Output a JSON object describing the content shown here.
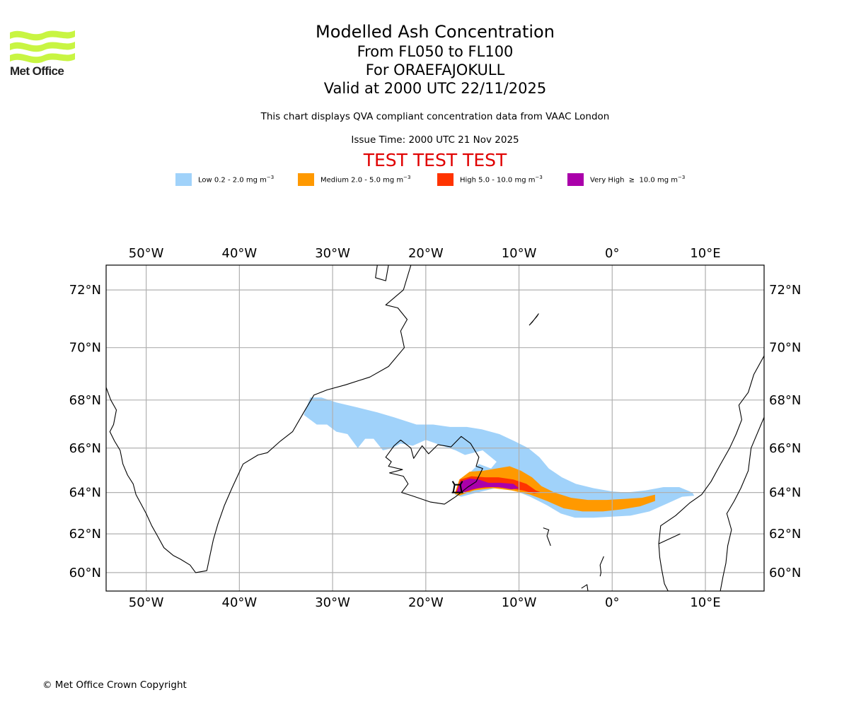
{
  "logo": {
    "text": "Met Office",
    "brand_color": "#c8f542"
  },
  "header": {
    "title": "Modelled Ash Concentration",
    "level_range": "From FL050 to FL100",
    "volcano": "For ORAEFAJOKULL",
    "valid_time": "Valid at 2000 UTC 22/11/2025",
    "source_note": "This chart displays QVA compliant concentration data from VAAC London",
    "issue_time": "Issue Time: 2000 UTC 21 Nov 2025",
    "test_banner": "TEST TEST TEST",
    "test_banner_color": "#e00000"
  },
  "legend": [
    {
      "name": "Low",
      "label": "Low 0.2 - 2.0 mg m",
      "exp": "−3",
      "color": "#a0d2fa"
    },
    {
      "name": "Medium",
      "label": "Medium 2.0 - 5.0 mg m",
      "exp": "−3",
      "color": "#ff9900"
    },
    {
      "name": "High",
      "label": "High 5.0 - 10.0 mg m",
      "exp": "−3",
      "color": "#ff3300"
    },
    {
      "name": "Very High",
      "label": "Very High  ≥  10.0 mg m",
      "exp": "−3",
      "color": "#aa00aa"
    }
  ],
  "footer": {
    "copyright": "© Met Office Crown Copyright"
  },
  "chart_data": {
    "type": "map",
    "title": "Modelled Ash Concentration",
    "extent": {
      "lon": [
        -54.3,
        16.3
      ],
      "lat": [
        59.0,
        72.8
      ]
    },
    "grid": true,
    "lon_ticks": [
      {
        "value": -50,
        "label": "50°W"
      },
      {
        "value": -40,
        "label": "40°W"
      },
      {
        "value": -30,
        "label": "30°W"
      },
      {
        "value": -20,
        "label": "20°W"
      },
      {
        "value": -10,
        "label": "10°W"
      },
      {
        "value": 0,
        "label": "0°"
      },
      {
        "value": 10,
        "label": "10°E"
      }
    ],
    "lat_ticks": [
      {
        "value": 72,
        "label": "72°N"
      },
      {
        "value": 70,
        "label": "70°N"
      },
      {
        "value": 68,
        "label": "68°N"
      },
      {
        "value": 66,
        "label": "66°N"
      },
      {
        "value": 64,
        "label": "64°N"
      },
      {
        "value": 62,
        "label": "62°N"
      },
      {
        "value": 60,
        "label": "60°N"
      }
    ],
    "volcano_location": {
      "name": "ORAEFAJOKULL",
      "lon": -16.6,
      "lat": 64.0
    },
    "ash_levels": [
      {
        "level": "Low",
        "range": "0.2 - 2.0 mg m-3",
        "polygon": [
          [
            -33.1,
            67.4
          ],
          [
            -32.4,
            68.1
          ],
          [
            -31.2,
            68.1
          ],
          [
            -29.6,
            67.9
          ],
          [
            -27.3,
            67.7
          ],
          [
            -25.2,
            67.5
          ],
          [
            -23.4,
            67.3
          ],
          [
            -21.0,
            67.0
          ],
          [
            -19.2,
            67.0
          ],
          [
            -17.4,
            66.9
          ],
          [
            -15.6,
            66.9
          ],
          [
            -14.0,
            66.8
          ],
          [
            -12.1,
            66.6
          ],
          [
            -10.5,
            66.3
          ],
          [
            -9.0,
            66.0
          ],
          [
            -7.8,
            65.6
          ],
          [
            -6.8,
            65.1
          ],
          [
            -5.4,
            64.7
          ],
          [
            -3.9,
            64.4
          ],
          [
            -2.0,
            64.2
          ],
          [
            0.0,
            64.05
          ],
          [
            1.6,
            64.0
          ],
          [
            3.6,
            64.1
          ],
          [
            5.5,
            64.25
          ],
          [
            7.2,
            64.25
          ],
          [
            8.6,
            64.0
          ],
          [
            8.8,
            63.85
          ],
          [
            7.5,
            63.8
          ],
          [
            6.0,
            63.5
          ],
          [
            4.0,
            63.1
          ],
          [
            2.0,
            62.9
          ],
          [
            0.0,
            62.85
          ],
          [
            -2.0,
            62.8
          ],
          [
            -4.0,
            62.8
          ],
          [
            -5.5,
            63.0
          ],
          [
            -7.0,
            63.4
          ],
          [
            -8.8,
            63.8
          ],
          [
            -10.5,
            64.1
          ],
          [
            -12.5,
            64.2
          ],
          [
            -14.5,
            64.0
          ],
          [
            -16.2,
            63.8
          ],
          [
            -16.9,
            63.9
          ],
          [
            -15.8,
            64.7
          ],
          [
            -14.3,
            65.3
          ],
          [
            -13.0,
            65.1
          ],
          [
            -12.4,
            65.4
          ],
          [
            -13.9,
            65.9
          ],
          [
            -15.8,
            65.7
          ],
          [
            -16.8,
            65.9
          ],
          [
            -18.2,
            66.1
          ],
          [
            -20.0,
            66.35
          ],
          [
            -21.4,
            66.1
          ],
          [
            -22.7,
            66.2
          ],
          [
            -23.6,
            66.0
          ],
          [
            -24.6,
            65.9
          ],
          [
            -25.6,
            66.4
          ],
          [
            -26.5,
            66.4
          ],
          [
            -27.3,
            66.0
          ],
          [
            -28.4,
            66.6
          ],
          [
            -29.6,
            66.7
          ],
          [
            -30.6,
            67.0
          ],
          [
            -31.7,
            67.0
          ],
          [
            -33.1,
            67.4
          ]
        ]
      },
      {
        "level": "Medium",
        "range": "2.0 - 5.0 mg m-3",
        "polygon": [
          [
            -16.9,
            63.95
          ],
          [
            -16.4,
            64.6
          ],
          [
            -15.3,
            64.95
          ],
          [
            -13.8,
            65.0
          ],
          [
            -12.4,
            65.1
          ],
          [
            -11.0,
            65.2
          ],
          [
            -9.8,
            65.0
          ],
          [
            -8.6,
            64.7
          ],
          [
            -7.6,
            64.3
          ],
          [
            -6.2,
            64.0
          ],
          [
            -4.4,
            63.75
          ],
          [
            -2.6,
            63.65
          ],
          [
            -0.6,
            63.65
          ],
          [
            1.4,
            63.7
          ],
          [
            3.2,
            63.75
          ],
          [
            4.6,
            63.9
          ],
          [
            4.6,
            63.6
          ],
          [
            3.0,
            63.35
          ],
          [
            1.0,
            63.2
          ],
          [
            -1.0,
            63.1
          ],
          [
            -3.2,
            63.1
          ],
          [
            -5.2,
            63.25
          ],
          [
            -7.0,
            63.6
          ],
          [
            -8.8,
            63.9
          ],
          [
            -10.8,
            64.1
          ],
          [
            -12.8,
            64.2
          ],
          [
            -14.8,
            64.1
          ],
          [
            -16.4,
            63.85
          ],
          [
            -16.9,
            63.95
          ]
        ]
      },
      {
        "level": "High",
        "range": "5.0 - 10.0 mg m-3",
        "polygon": [
          [
            -16.8,
            64.0
          ],
          [
            -16.3,
            64.6
          ],
          [
            -15.1,
            64.75
          ],
          [
            -13.6,
            64.7
          ],
          [
            -12.2,
            64.7
          ],
          [
            -10.6,
            64.6
          ],
          [
            -9.2,
            64.4
          ],
          [
            -8.2,
            64.1
          ],
          [
            -7.6,
            64.0
          ],
          [
            -8.4,
            63.95
          ],
          [
            -9.6,
            64.1
          ],
          [
            -11.2,
            64.2
          ],
          [
            -12.8,
            64.25
          ],
          [
            -14.4,
            64.2
          ],
          [
            -15.9,
            64.0
          ],
          [
            -16.8,
            64.0
          ]
        ]
      },
      {
        "level": "Very High",
        "range": ">= 10.0 mg m-3",
        "polygon": [
          [
            -16.7,
            64.0
          ],
          [
            -16.3,
            64.5
          ],
          [
            -15.3,
            64.65
          ],
          [
            -14.3,
            64.6
          ],
          [
            -13.3,
            64.45
          ],
          [
            -12.0,
            64.45
          ],
          [
            -10.6,
            64.4
          ],
          [
            -10.0,
            64.2
          ],
          [
            -10.8,
            64.15
          ],
          [
            -12.2,
            64.25
          ],
          [
            -13.6,
            64.25
          ],
          [
            -15.0,
            64.15
          ],
          [
            -16.2,
            63.98
          ],
          [
            -16.7,
            64.0
          ]
        ]
      }
    ],
    "coastlines": [
      {
        "name": "Greenland south",
        "points": [
          [
            -54.3,
            68.5
          ],
          [
            -53.8,
            68.0
          ],
          [
            -53.2,
            67.6
          ],
          [
            -53.5,
            67.0
          ],
          [
            -53.9,
            66.7
          ],
          [
            -53.4,
            66.3
          ],
          [
            -52.8,
            65.9
          ],
          [
            -52.5,
            65.3
          ],
          [
            -52.0,
            64.8
          ],
          [
            -51.4,
            64.4
          ],
          [
            -51.1,
            63.9
          ],
          [
            -50.6,
            63.5
          ],
          [
            -50.0,
            63.0
          ],
          [
            -49.4,
            62.4
          ],
          [
            -48.8,
            61.9
          ],
          [
            -48.1,
            61.3
          ],
          [
            -47.1,
            60.9
          ],
          [
            -46.3,
            60.7
          ],
          [
            -45.3,
            60.4
          ],
          [
            -44.7,
            60.0
          ],
          [
            -43.5,
            60.1
          ],
          [
            -43.2,
            60.8
          ],
          [
            -42.8,
            61.7
          ],
          [
            -42.3,
            62.5
          ],
          [
            -41.6,
            63.4
          ],
          [
            -40.8,
            64.2
          ],
          [
            -39.6,
            65.3
          ],
          [
            -38.0,
            65.7
          ],
          [
            -37.0,
            65.8
          ],
          [
            -35.6,
            66.3
          ],
          [
            -34.3,
            66.7
          ],
          [
            -33.1,
            67.5
          ],
          [
            -32.0,
            68.2
          ],
          [
            -30.6,
            68.4
          ],
          [
            -28.6,
            68.6
          ],
          [
            -26.0,
            68.9
          ],
          [
            -24.0,
            69.3
          ],
          [
            -22.3,
            70.0
          ],
          [
            -22.7,
            70.6
          ],
          [
            -22.0,
            71.0
          ],
          [
            -23.0,
            71.4
          ],
          [
            -24.3,
            71.5
          ],
          [
            -22.4,
            72.0
          ],
          [
            -21.6,
            72.8
          ]
        ]
      },
      {
        "name": "Iceland",
        "points": [
          [
            -22.7,
            66.35
          ],
          [
            -23.4,
            66.1
          ],
          [
            -24.3,
            65.6
          ],
          [
            -23.7,
            65.4
          ],
          [
            -24.0,
            65.2
          ],
          [
            -22.5,
            65.05
          ],
          [
            -23.9,
            64.9
          ],
          [
            -22.4,
            64.75
          ],
          [
            -21.9,
            64.4
          ],
          [
            -22.6,
            64.0
          ],
          [
            -21.5,
            63.85
          ],
          [
            -19.5,
            63.55
          ],
          [
            -18.0,
            63.45
          ],
          [
            -16.8,
            63.8
          ],
          [
            -15.5,
            64.25
          ],
          [
            -14.6,
            64.5
          ],
          [
            -13.9,
            65.1
          ],
          [
            -14.6,
            65.2
          ],
          [
            -14.3,
            65.6
          ],
          [
            -15.2,
            66.2
          ],
          [
            -16.2,
            66.5
          ],
          [
            -17.3,
            66.05
          ],
          [
            -18.7,
            66.15
          ],
          [
            -19.7,
            65.75
          ],
          [
            -20.4,
            66.1
          ],
          [
            -21.3,
            65.55
          ],
          [
            -21.6,
            66.0
          ],
          [
            -22.7,
            66.35
          ]
        ]
      },
      {
        "name": "Norway",
        "points": [
          [
            7.3,
            62.0
          ],
          [
            5.0,
            61.5
          ],
          [
            5.1,
            60.8
          ],
          [
            5.3,
            60.2
          ],
          [
            5.6,
            59.4
          ],
          [
            6.0,
            59.0
          ]
        ]
      },
      {
        "name": "Norway west coast",
        "points": [
          [
            16.3,
            69.7
          ],
          [
            15.2,
            69.0
          ],
          [
            14.6,
            68.3
          ],
          [
            13.6,
            67.8
          ],
          [
            13.9,
            67.2
          ],
          [
            13.3,
            66.6
          ],
          [
            12.6,
            66.0
          ],
          [
            11.5,
            65.2
          ],
          [
            10.6,
            64.5
          ],
          [
            9.6,
            63.9
          ],
          [
            8.3,
            63.5
          ],
          [
            6.8,
            62.9
          ],
          [
            5.2,
            62.4
          ],
          [
            5.0,
            61.5
          ]
        ]
      },
      {
        "name": "Sweden border",
        "points": [
          [
            16.3,
            67.3
          ],
          [
            14.9,
            66.0
          ],
          [
            14.6,
            65.0
          ],
          [
            13.8,
            64.2
          ],
          [
            13.1,
            63.6
          ],
          [
            12.3,
            63.0
          ],
          [
            12.8,
            62.2
          ],
          [
            12.4,
            61.4
          ],
          [
            12.2,
            60.5
          ],
          [
            11.9,
            59.8
          ],
          [
            11.6,
            59.0
          ]
        ]
      },
      {
        "name": "Jan Mayen",
        "points": [
          [
            -8.9,
            70.8
          ],
          [
            -8.1,
            71.1
          ],
          [
            -7.9,
            71.2
          ],
          [
            -8.6,
            70.9
          ],
          [
            -8.9,
            70.8
          ]
        ]
      },
      {
        "name": "Faroe Islands",
        "points": [
          [
            -7.4,
            62.3
          ],
          [
            -6.8,
            62.2
          ],
          [
            -7.0,
            61.9
          ],
          [
            -6.6,
            61.4
          ]
        ]
      },
      {
        "name": "Shetland",
        "points": [
          [
            -0.9,
            60.85
          ],
          [
            -1.3,
            60.4
          ],
          [
            -1.2,
            60.0
          ],
          [
            -1.3,
            59.8
          ]
        ]
      },
      {
        "name": "Orkney",
        "points": [
          [
            -3.3,
            59.15
          ],
          [
            -2.7,
            59.35
          ],
          [
            -2.6,
            59.0
          ],
          [
            -3.2,
            58.9
          ]
        ]
      },
      {
        "name": "Svalbard tip",
        "points": [
          [
            -25.2,
            72.8
          ],
          [
            -25.4,
            72.4
          ],
          [
            -24.3,
            72.3
          ],
          [
            -24.0,
            72.8
          ]
        ]
      }
    ]
  }
}
